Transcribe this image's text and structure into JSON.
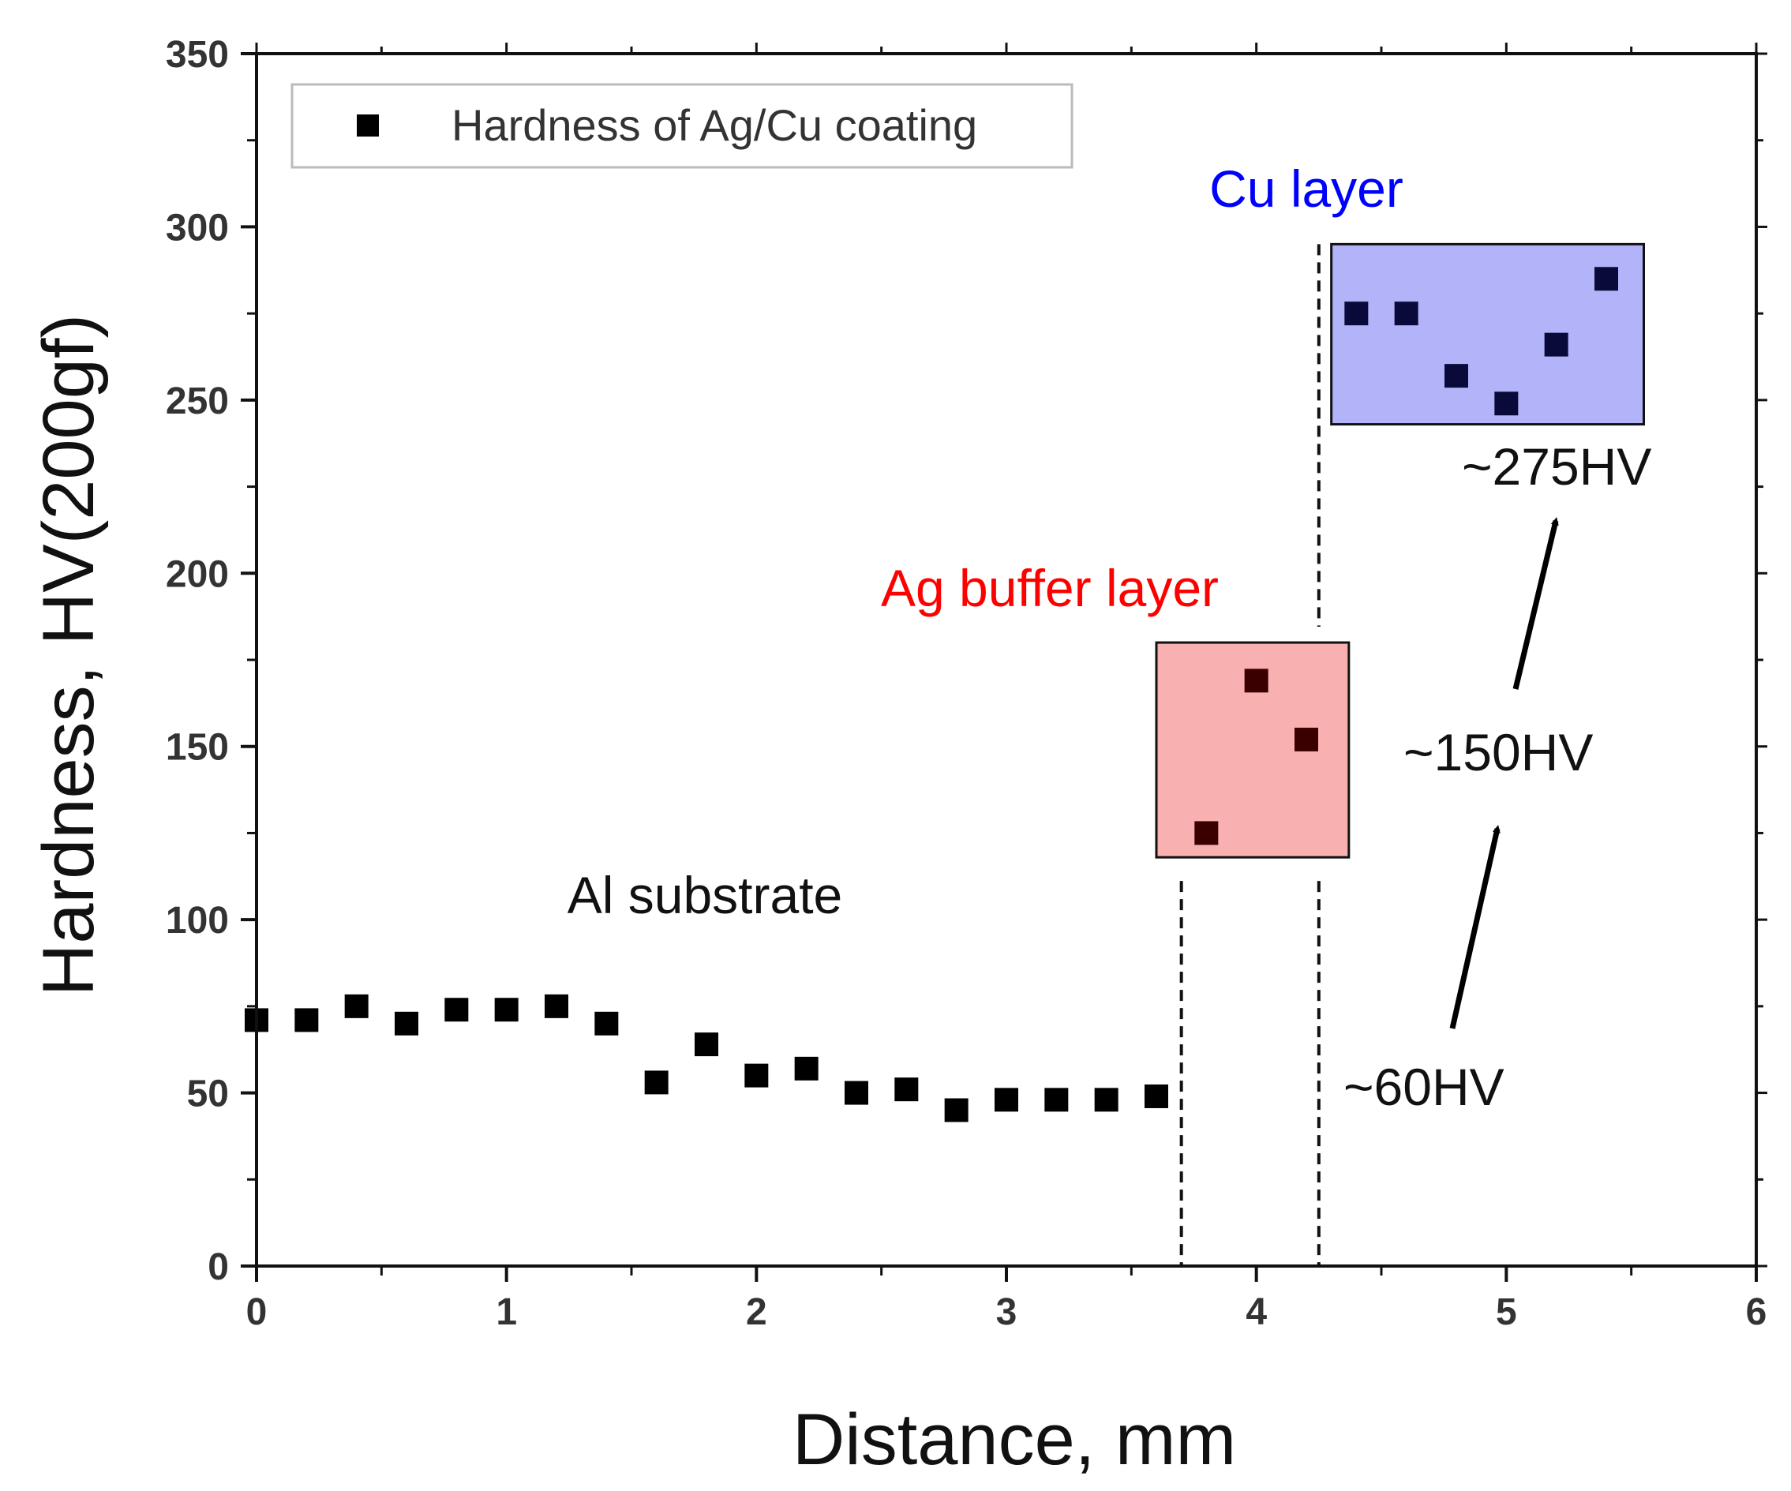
{
  "chart_data": {
    "type": "scatter",
    "title": "",
    "xlabel": "Distance, mm",
    "ylabel": "Hardness, HV(200gf)",
    "xlim": [
      0,
      6
    ],
    "ylim": [
      0,
      350
    ],
    "x_ticks": [
      "0",
      "1",
      "2",
      "3",
      "4",
      "5",
      "6"
    ],
    "y_ticks": [
      "0",
      "50",
      "100",
      "150",
      "200",
      "250",
      "300",
      "350"
    ],
    "grid": false,
    "legend": {
      "position": "top-left",
      "entries": [
        "Hardness of Ag/Cu coating"
      ]
    },
    "series": [
      {
        "name": "Hardness of Ag/Cu coating",
        "marker": "square",
        "color": "#000000",
        "points": [
          {
            "x": 0.0,
            "y": 71
          },
          {
            "x": 0.2,
            "y": 71
          },
          {
            "x": 0.4,
            "y": 75
          },
          {
            "x": 0.6,
            "y": 70
          },
          {
            "x": 0.8,
            "y": 74
          },
          {
            "x": 1.0,
            "y": 74
          },
          {
            "x": 1.2,
            "y": 75
          },
          {
            "x": 1.4,
            "y": 70
          },
          {
            "x": 1.6,
            "y": 53
          },
          {
            "x": 1.8,
            "y": 64
          },
          {
            "x": 2.0,
            "y": 55
          },
          {
            "x": 2.2,
            "y": 57
          },
          {
            "x": 2.4,
            "y": 50
          },
          {
            "x": 2.6,
            "y": 51
          },
          {
            "x": 2.8,
            "y": 45
          },
          {
            "x": 3.0,
            "y": 48
          },
          {
            "x": 3.2,
            "y": 48
          },
          {
            "x": 3.4,
            "y": 48
          },
          {
            "x": 3.6,
            "y": 49
          },
          {
            "x": 3.8,
            "y": 125
          },
          {
            "x": 4.0,
            "y": 169
          },
          {
            "x": 4.2,
            "y": 152
          },
          {
            "x": 4.4,
            "y": 275
          },
          {
            "x": 4.6,
            "y": 275
          },
          {
            "x": 4.8,
            "y": 257
          },
          {
            "x": 5.0,
            "y": 249
          },
          {
            "x": 5.2,
            "y": 266
          },
          {
            "x": 5.4,
            "y": 285
          }
        ]
      }
    ],
    "boundaries": [
      3.7,
      4.25
    ],
    "regions": [
      {
        "label": "Ag buffer layer",
        "color": "#ff0000",
        "fill": "#f9b0b0",
        "x_range": [
          3.6,
          4.37
        ],
        "y_range": [
          118,
          180
        ]
      },
      {
        "label": "Cu layer",
        "color": "#0000ff",
        "fill": "#b3b3f9",
        "x_range": [
          4.3,
          5.55
        ],
        "y_range": [
          243,
          295
        ]
      }
    ],
    "annotations": [
      {
        "text": "Al substrate",
        "color": "#000000"
      },
      {
        "text": "~60HV",
        "color": "#000000"
      },
      {
        "text": "~150HV",
        "color": "#000000"
      },
      {
        "text": "~275HV",
        "color": "#000000"
      }
    ]
  }
}
